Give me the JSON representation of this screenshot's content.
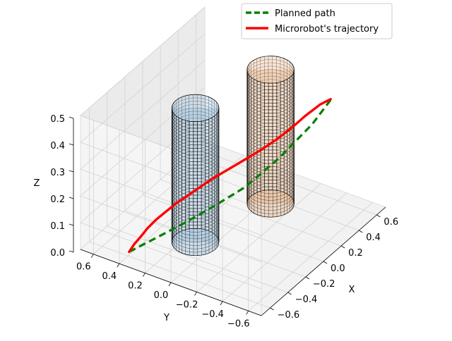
{
  "chart_data": {
    "type": "line",
    "projection": "3d",
    "xlabel": "X",
    "ylabel": "Y",
    "zlabel": "Z",
    "xlim": [
      -0.7,
      0.7
    ],
    "ylim": [
      -0.7,
      0.7
    ],
    "zlim": [
      0.0,
      0.5
    ],
    "xticks": [
      "−0.6",
      "−0.4",
      "−0.2",
      "0.0",
      "0.2",
      "0.4",
      "0.6"
    ],
    "yticks": [
      "−0.6",
      "−0.4",
      "−0.2",
      "0.0",
      "0.2",
      "0.4",
      "0.6"
    ],
    "zticks": [
      "0.0",
      "0.1",
      "0.2",
      "0.3",
      "0.4",
      "0.5"
    ],
    "grid": true,
    "legend": {
      "placement": "top-right"
    },
    "obstacles": [
      {
        "shape": "cylinder",
        "center": [
          -0.25,
          0.12
        ],
        "radius": 0.15,
        "height": 0.5,
        "color": "#9fc3dd"
      },
      {
        "shape": "cylinder",
        "center": [
          0.35,
          -0.05
        ],
        "radius": 0.15,
        "height": 0.5,
        "color": "#e8b88e"
      }
    ],
    "series": [
      {
        "name": "Planned path",
        "color": "#008000",
        "style": "dashed",
        "points": [
          [
            -0.56,
            0.42,
            0.0
          ],
          [
            -0.4,
            0.34,
            0.015
          ],
          [
            -0.2,
            0.24,
            0.035
          ],
          [
            0.0,
            0.14,
            0.06
          ],
          [
            0.2,
            0.04,
            0.09
          ],
          [
            0.4,
            -0.08,
            0.16
          ],
          [
            0.6,
            -0.2,
            0.25
          ],
          [
            0.7,
            -0.28,
            0.33
          ]
        ]
      },
      {
        "name": "Microrobot's trajectory",
        "color": "#ff0000",
        "style": "solid",
        "points": [
          [
            -0.56,
            0.42,
            0.0
          ],
          [
            -0.5,
            0.42,
            0.012
          ],
          [
            -0.44,
            0.41,
            0.025
          ],
          [
            -0.38,
            0.4,
            0.04
          ],
          [
            -0.3,
            0.39,
            0.05
          ],
          [
            -0.22,
            0.37,
            0.06
          ],
          [
            -0.14,
            0.34,
            0.075
          ],
          [
            -0.06,
            0.3,
            0.09
          ],
          [
            0.02,
            0.26,
            0.105
          ],
          [
            0.1,
            0.22,
            0.12
          ],
          [
            0.18,
            0.16,
            0.14
          ],
          [
            0.26,
            0.1,
            0.16
          ],
          [
            0.34,
            0.02,
            0.19
          ],
          [
            0.42,
            -0.05,
            0.22
          ],
          [
            0.5,
            -0.11,
            0.25
          ],
          [
            0.58,
            -0.16,
            0.28
          ],
          [
            0.66,
            -0.22,
            0.31
          ],
          [
            0.72,
            -0.26,
            0.32
          ]
        ]
      }
    ]
  }
}
